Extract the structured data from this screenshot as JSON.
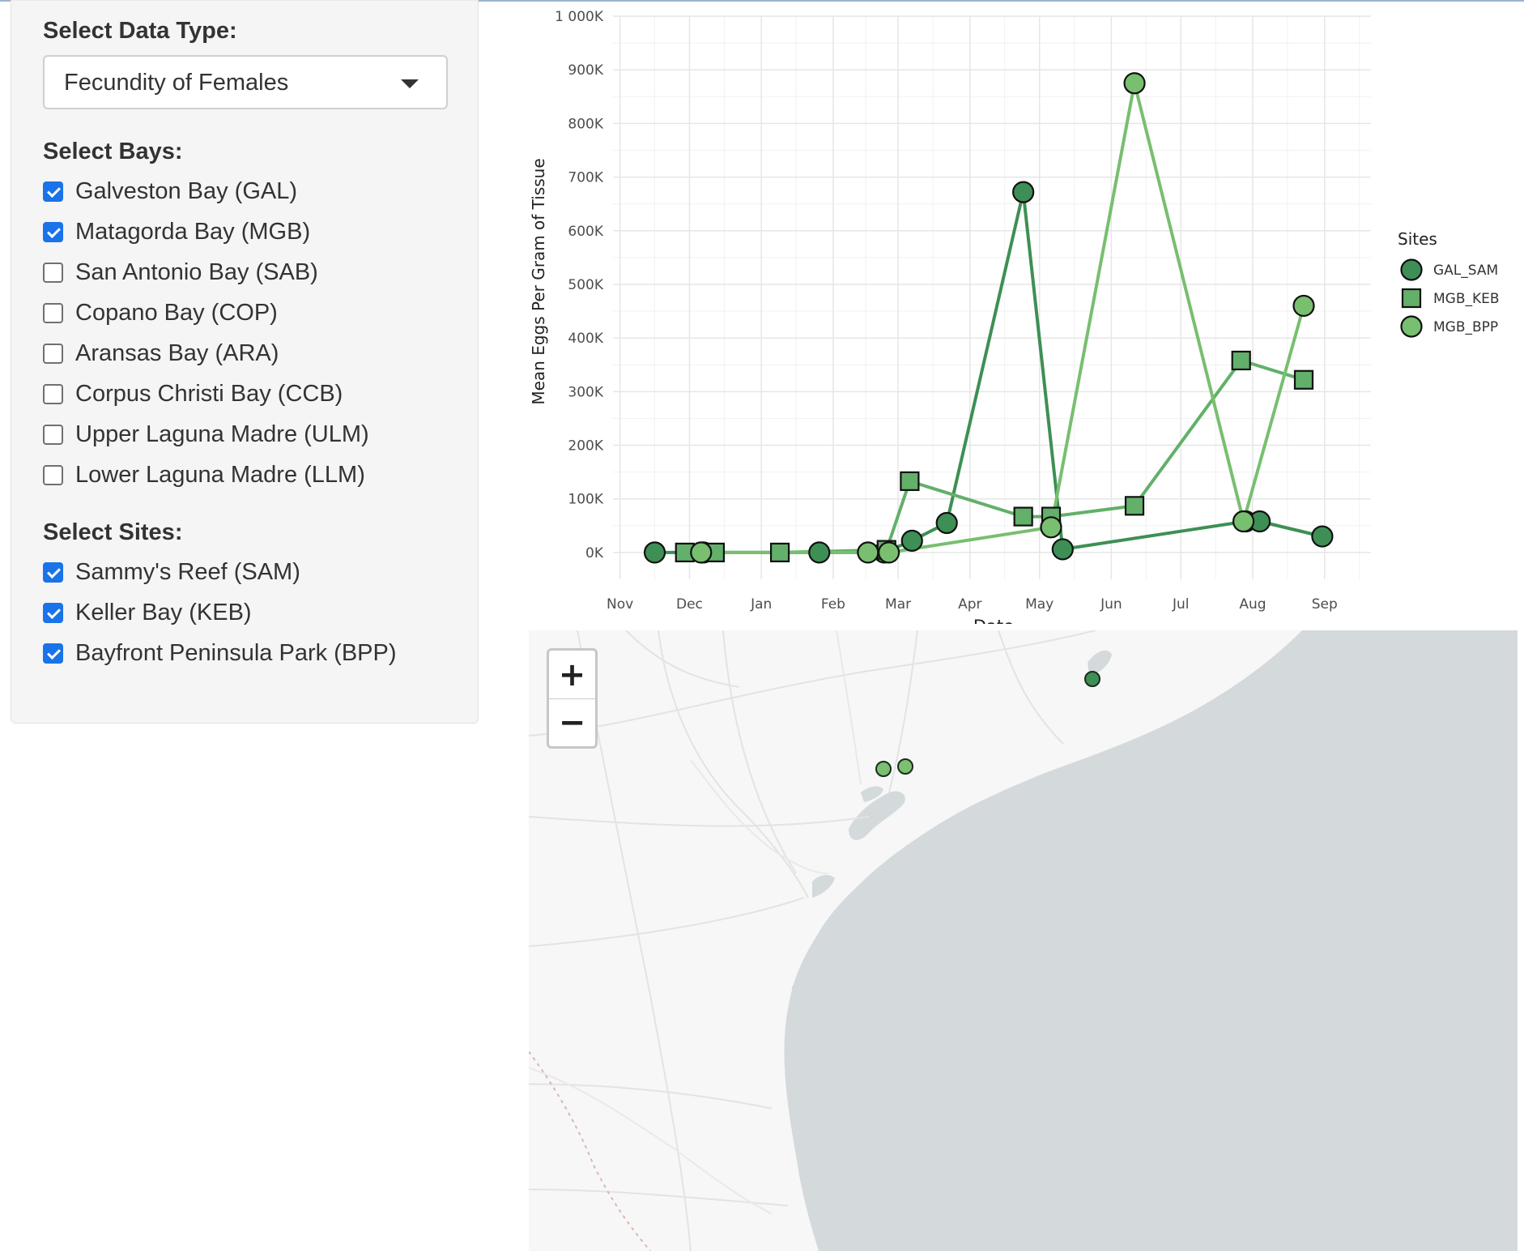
{
  "sidebar": {
    "data_type_heading": "Select Data Type:",
    "data_type_value": "Fecundity of Females",
    "bays_heading": "Select Bays:",
    "bays": [
      {
        "label": "Galveston Bay (GAL)",
        "checked": true
      },
      {
        "label": "Matagorda Bay (MGB)",
        "checked": true
      },
      {
        "label": "San Antonio Bay (SAB)",
        "checked": false
      },
      {
        "label": "Copano Bay (COP)",
        "checked": false
      },
      {
        "label": "Aransas Bay (ARA)",
        "checked": false
      },
      {
        "label": "Corpus Christi Bay (CCB)",
        "checked": false
      },
      {
        "label": "Upper Laguna Madre (ULM)",
        "checked": false
      },
      {
        "label": "Lower Laguna Madre (LLM)",
        "checked": false
      }
    ],
    "sites_heading": "Select Sites:",
    "sites": [
      {
        "label": "Sammy's Reef (SAM)",
        "checked": true
      },
      {
        "label": "Keller Bay (KEB)",
        "checked": true
      },
      {
        "label": "Bayfront Peninsula Park (BPP)",
        "checked": true
      }
    ]
  },
  "chart_data": {
    "type": "line",
    "title": "",
    "xlabel": "Date",
    "ylabel": "Mean Eggs Per Gram of Tissue",
    "x_ticks": [
      "Nov",
      "Dec",
      "Jan",
      "Feb",
      "Mar",
      "Apr",
      "May",
      "Jun",
      "Jul",
      "Aug",
      "Sep"
    ],
    "y_ticks": [
      "0K",
      "100K",
      "200K",
      "300K",
      "400K",
      "500K",
      "600K",
      "700K",
      "800K",
      "900K",
      "1 000K"
    ],
    "xlim": [
      "2017-10-29",
      "2018-09-21"
    ],
    "ylim": [
      -50000,
      1000000
    ],
    "grid": true,
    "legend_title": "Sites",
    "legend_position": "right",
    "series": [
      {
        "name": "GAL_SAM",
        "marker": "circle",
        "color": "#3e8f55",
        "points": [
          [
            "2017-11-16",
            0
          ],
          [
            "2017-12-07",
            0
          ],
          [
            "2018-01-26",
            0
          ],
          [
            "2018-02-23",
            0
          ],
          [
            "2018-03-07",
            22000
          ],
          [
            "2018-03-22",
            55000
          ],
          [
            "2018-04-24",
            672000
          ],
          [
            "2018-05-11",
            6000
          ],
          [
            "2018-07-29",
            58000
          ],
          [
            "2018-08-04",
            58000
          ],
          [
            "2018-08-31",
            30000
          ]
        ]
      },
      {
        "name": "MGB_KEB",
        "marker": "square",
        "color": "#62b06a",
        "points": [
          [
            "2017-11-29",
            0
          ],
          [
            "2017-12-12",
            0
          ],
          [
            "2018-01-09",
            0
          ],
          [
            "2018-02-24",
            5000
          ],
          [
            "2018-03-06",
            133000
          ],
          [
            "2018-04-24",
            67000
          ],
          [
            "2018-05-06",
            67000
          ],
          [
            "2018-06-11",
            87000
          ],
          [
            "2018-07-27",
            358000
          ],
          [
            "2018-08-23",
            322000
          ]
        ]
      },
      {
        "name": "MGB_BPP",
        "marker": "circle",
        "color": "#78bf6f",
        "points": [
          [
            "2017-12-06",
            0
          ],
          [
            "2018-02-16",
            0
          ],
          [
            "2018-02-25",
            0
          ],
          [
            "2018-05-06",
            47000
          ],
          [
            "2018-06-11",
            875000
          ],
          [
            "2018-07-28",
            58000
          ],
          [
            "2018-08-23",
            460000
          ]
        ]
      }
    ]
  },
  "map": {
    "zoom_in_label": "+",
    "zoom_out_label": "−",
    "markers": [
      {
        "site": "GAL_SAM",
        "color": "#3e8f55"
      },
      {
        "site": "MGB_BPP",
        "color": "#7bc070"
      },
      {
        "site": "MGB_BPP",
        "color": "#7bc070"
      }
    ]
  }
}
